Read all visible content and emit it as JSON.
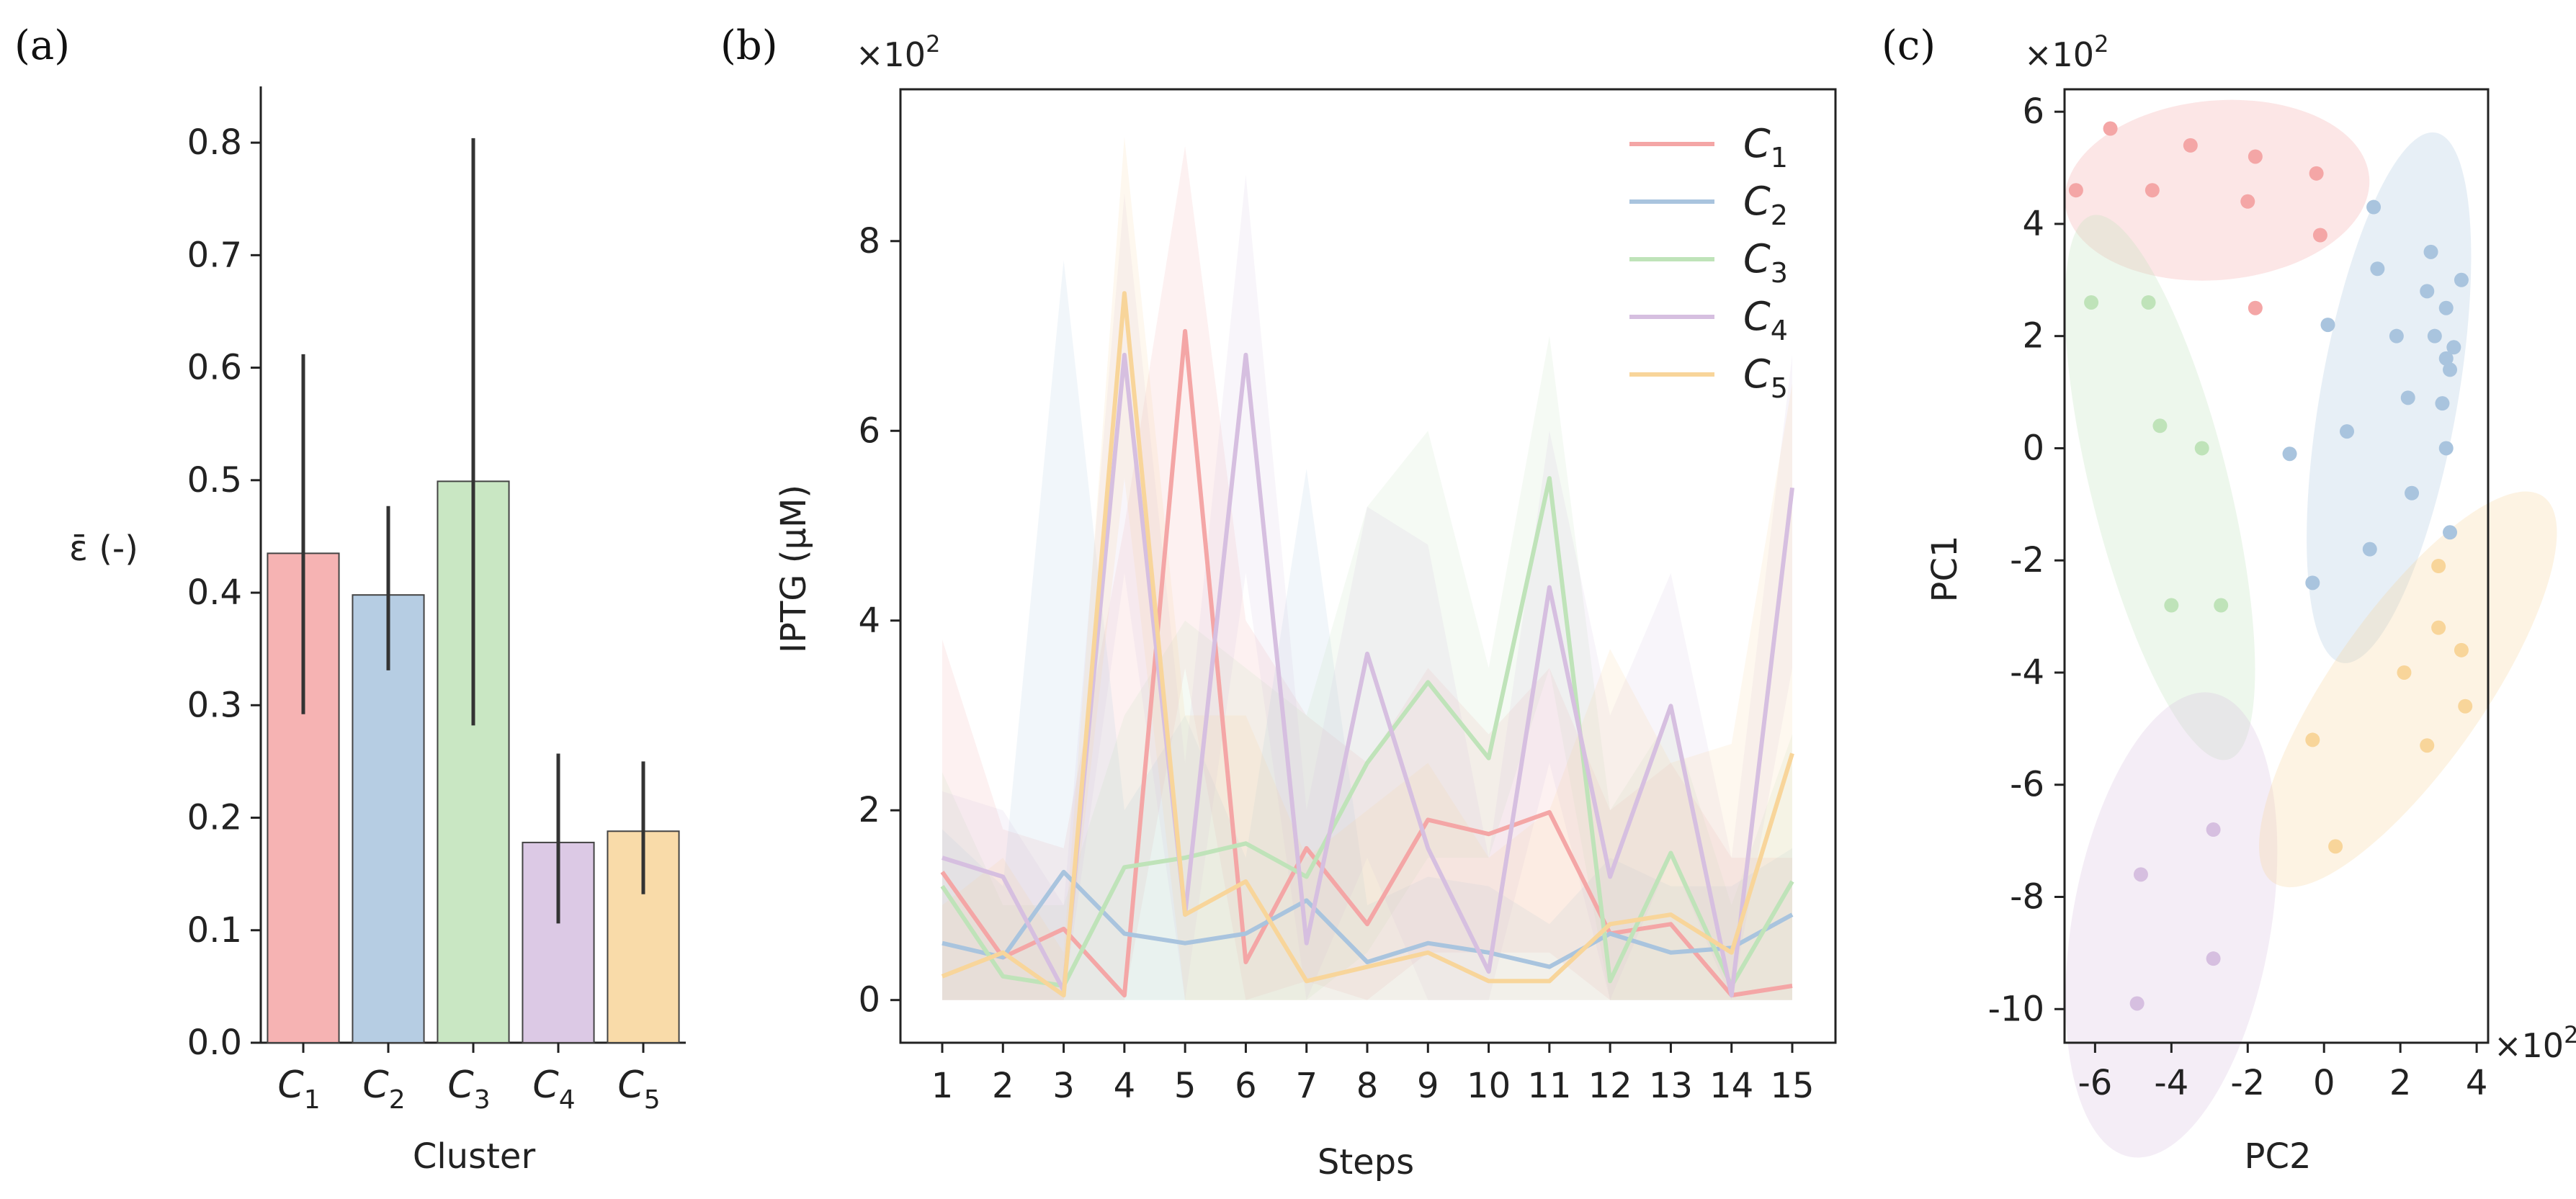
{
  "colors": {
    "C1": "#f4a6a6",
    "C2": "#a9c4de",
    "C3": "#bfe3b9",
    "C4": "#d6bfe0",
    "C5": "#f8d59a"
  },
  "chart_data": [
    {
      "type": "bar",
      "panel_label": "(a)",
      "title": "",
      "xlabel": "Cluster",
      "ylabel": "ε̄ (-)",
      "ylim": [
        0,
        0.85
      ],
      "yticks": [
        "0.0",
        "0.1",
        "0.2",
        "0.3",
        "0.4",
        "0.5",
        "0.6",
        "0.7",
        "0.8"
      ],
      "categories": [
        {
          "base": "C",
          "sub": "1"
        },
        {
          "base": "C",
          "sub": "2"
        },
        {
          "base": "C",
          "sub": "3"
        },
        {
          "base": "C",
          "sub": "4"
        },
        {
          "base": "C",
          "sub": "5"
        }
      ],
      "values": [
        0.435,
        0.398,
        0.499,
        0.178,
        0.188
      ],
      "err_low": [
        0.292,
        0.331,
        0.282,
        0.106,
        0.132
      ],
      "err_high": [
        0.612,
        0.477,
        0.804,
        0.257,
        0.25
      ]
    },
    {
      "type": "line",
      "panel_label": "(b)",
      "xlabel": "Steps",
      "ylabel": "IPTG (μM)",
      "y_multiplier": {
        "base": "×10",
        "exp": "2"
      },
      "ylim": [
        -0.45,
        9.6
      ],
      "yticks": [
        "0",
        "2",
        "4",
        "6",
        "8"
      ],
      "x": [
        1,
        2,
        3,
        4,
        5,
        6,
        7,
        8,
        9,
        10,
        11,
        12,
        13,
        14,
        15
      ],
      "legend_position": "top-right",
      "series": [
        {
          "name_base": "C",
          "name_sub": "1",
          "color_key": "C1",
          "values": [
            1.35,
            0.45,
            0.75,
            0.05,
            7.05,
            0.4,
            1.6,
            0.8,
            1.9,
            1.75,
            1.98,
            0.7,
            0.8,
            0.05,
            0.15
          ],
          "upper": [
            3.8,
            1.8,
            1.6,
            5.0,
            9.0,
            4.0,
            3.0,
            2.5,
            3.5,
            2.8,
            3.5,
            2.0,
            2.5,
            1.5,
            1.5
          ],
          "lower": [
            0,
            0,
            0,
            0,
            3.5,
            0,
            0.2,
            0,
            0.5,
            0.5,
            0.5,
            0,
            0,
            0,
            0
          ]
        },
        {
          "name_base": "C",
          "name_sub": "2",
          "color_key": "C2",
          "values": [
            0.6,
            0.45,
            1.35,
            0.7,
            0.6,
            0.7,
            1.05,
            0.4,
            0.6,
            0.5,
            0.35,
            0.7,
            0.5,
            0.55,
            0.9
          ],
          "upper": [
            1.8,
            1.2,
            7.8,
            2.0,
            3.0,
            1.5,
            5.6,
            1.0,
            1.3,
            1.2,
            0.8,
            1.5,
            1.2,
            1.2,
            1.6
          ],
          "lower": [
            0,
            0,
            0,
            0,
            0,
            0,
            0,
            0,
            0,
            0,
            0,
            0,
            0,
            0,
            0
          ]
        },
        {
          "name_base": "C",
          "name_sub": "3",
          "color_key": "C3",
          "values": [
            1.2,
            0.25,
            0.15,
            1.4,
            1.5,
            1.65,
            1.3,
            2.5,
            3.35,
            2.55,
            5.5,
            0.2,
            1.55,
            0.15,
            1.25
          ],
          "upper": [
            2.4,
            1.0,
            1.0,
            3.0,
            4.0,
            3.5,
            3.0,
            5.2,
            6.0,
            3.5,
            7.0,
            2.0,
            3.0,
            1.0,
            2.8
          ],
          "lower": [
            0,
            0,
            0,
            0,
            0,
            0,
            0,
            0.5,
            1.5,
            1.5,
            3.5,
            0,
            0,
            0,
            0
          ]
        },
        {
          "name_base": "C",
          "name_sub": "4",
          "color_key": "C4",
          "values": [
            1.5,
            1.3,
            0.1,
            6.8,
            0.9,
            6.8,
            0.6,
            3.65,
            1.6,
            0.3,
            4.35,
            1.3,
            3.1,
            0.05,
            5.4
          ],
          "upper": [
            2.2,
            2.0,
            1.0,
            8.5,
            2.5,
            8.7,
            2.0,
            5.2,
            4.8,
            1.5,
            6.0,
            3.0,
            4.5,
            1.5,
            6.8
          ],
          "lower": [
            0,
            0,
            0,
            4.5,
            0,
            4.5,
            0,
            1.5,
            0,
            0,
            2.5,
            0,
            1.5,
            0,
            3.5
          ]
        },
        {
          "name_base": "C",
          "name_sub": "5",
          "color_key": "C5",
          "values": [
            0.25,
            0.5,
            0.05,
            7.45,
            0.9,
            1.25,
            0.2,
            0.35,
            0.5,
            0.2,
            0.2,
            0.8,
            0.9,
            0.5,
            2.6
          ],
          "upper": [
            1.0,
            1.5,
            0.5,
            9.1,
            3.0,
            3.0,
            1.5,
            2.0,
            2.5,
            1.5,
            2.0,
            3.7,
            2.5,
            2.7,
            6.5
          ],
          "lower": [
            0,
            0,
            0,
            5.5,
            0,
            0,
            0,
            0,
            0,
            0,
            0,
            0,
            0,
            0,
            0
          ]
        }
      ]
    },
    {
      "type": "scatter",
      "panel_label": "(c)",
      "xlabel": "PC2",
      "ylabel": "PC1",
      "x_multiplier": {
        "base": "×10",
        "exp": "2"
      },
      "y_multiplier": {
        "base": "×10",
        "exp": "2"
      },
      "xlim": [
        -6.8,
        4.3
      ],
      "ylim": [
        -10.6,
        6.4
      ],
      "xticks": [
        "-6",
        "-4",
        "-2",
        "0",
        "2",
        "4"
      ],
      "yticks": [
        "-10",
        "-8",
        "-6",
        "-4",
        "-2",
        "0",
        "2",
        "4",
        "6"
      ],
      "series": [
        {
          "name": "C1",
          "color_key": "C1",
          "points": [
            [
              -6.5,
              4.6
            ],
            [
              -5.6,
              5.7
            ],
            [
              -4.5,
              4.6
            ],
            [
              -3.5,
              5.4
            ],
            [
              -2.0,
              4.4
            ],
            [
              -1.8,
              5.2
            ],
            [
              -0.2,
              4.9
            ],
            [
              -0.1,
              3.8
            ],
            [
              -1.8,
              2.5
            ]
          ],
          "ellipse": {
            "cx": -2.8,
            "cy": 4.6,
            "rx": 4.0,
            "ry": 1.6,
            "angle_deg": -5
          }
        },
        {
          "name": "C2",
          "color_key": "C2",
          "points": [
            [
              1.3,
              4.3
            ],
            [
              1.4,
              3.2
            ],
            [
              0.1,
              2.2
            ],
            [
              1.9,
              2.0
            ],
            [
              2.7,
              2.8
            ],
            [
              2.8,
              3.5
            ],
            [
              3.2,
              2.5
            ],
            [
              3.6,
              3.0
            ],
            [
              2.9,
              2.0
            ],
            [
              3.2,
              1.6
            ],
            [
              3.4,
              1.8
            ],
            [
              3.3,
              1.4
            ],
            [
              2.2,
              0.9
            ],
            [
              3.1,
              0.8
            ],
            [
              -0.9,
              -0.1
            ],
            [
              0.6,
              0.3
            ],
            [
              3.2,
              0.0
            ],
            [
              2.3,
              -0.8
            ],
            [
              1.2,
              -1.8
            ],
            [
              -0.3,
              -2.4
            ],
            [
              3.3,
              -1.5
            ]
          ],
          "ellipse": {
            "cx": 1.7,
            "cy": 0.9,
            "rx": 1.8,
            "ry": 4.8,
            "angle_deg": 10
          }
        },
        {
          "name": "C3",
          "color_key": "C3",
          "points": [
            [
              -6.1,
              2.6
            ],
            [
              -4.6,
              2.6
            ],
            [
              -4.3,
              0.4
            ],
            [
              -3.2,
              0.0
            ],
            [
              -4.0,
              -2.8
            ],
            [
              -2.7,
              -2.8
            ]
          ],
          "ellipse": {
            "cx": -4.3,
            "cy": -0.7,
            "rx": 1.8,
            "ry": 5.0,
            "angle_deg": -14
          }
        },
        {
          "name": "C4",
          "color_key": "C4",
          "points": [
            [
              -2.9,
              -6.8
            ],
            [
              -4.8,
              -7.6
            ],
            [
              -2.9,
              -9.1
            ],
            [
              -4.9,
              -9.9
            ]
          ],
          "ellipse": {
            "cx": -4.0,
            "cy": -8.5,
            "rx": 2.6,
            "ry": 4.2,
            "angle_deg": 10
          }
        },
        {
          "name": "C5",
          "color_key": "C5",
          "points": [
            [
              3.0,
              -2.1
            ],
            [
              3.0,
              -3.2
            ],
            [
              3.6,
              -3.6
            ],
            [
              2.1,
              -4.0
            ],
            [
              3.7,
              -4.6
            ],
            [
              -0.3,
              -5.2
            ],
            [
              2.7,
              -5.3
            ],
            [
              0.3,
              -7.1
            ]
          ],
          "ellipse": {
            "cx": 2.2,
            "cy": -4.3,
            "rx": 2.0,
            "ry": 4.2,
            "angle_deg": 35
          }
        }
      ]
    }
  ]
}
